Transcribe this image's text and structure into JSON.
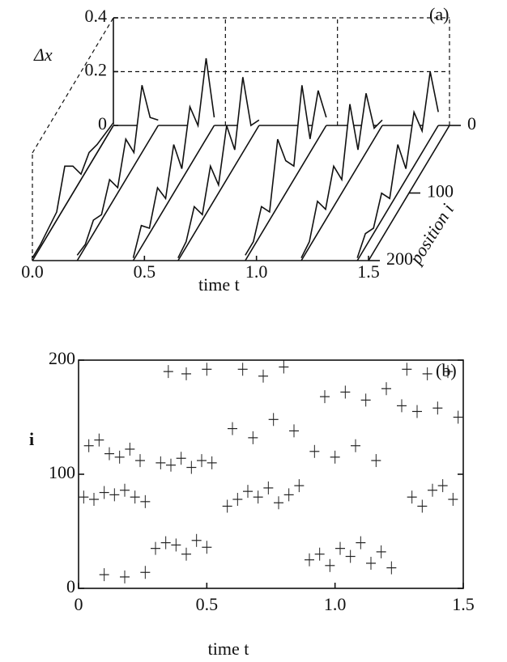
{
  "chart_data": [
    {
      "type": "waterfall",
      "label": "(a)",
      "ylabel": "Δx",
      "xlabel": "time t",
      "zlabel": "position i",
      "xlim": [
        0,
        1.5
      ],
      "xticks": [
        {
          "value": 0,
          "label": "0.0"
        },
        0.5,
        {
          "value": 1,
          "label": "1.0"
        },
        1.5
      ],
      "ylim": [
        0,
        0.4
      ],
      "yticks": [
        0,
        0.2,
        0.4
      ],
      "zlim": [
        0,
        200
      ],
      "zticks": [
        0,
        100,
        200
      ],
      "grid": true,
      "positions": [
        0,
        20,
        40,
        60,
        80,
        100,
        120,
        140,
        160,
        180,
        200
      ],
      "series": [
        {
          "t": 0.0,
          "values": [
            0.01,
            0.02,
            0.03,
            0.05,
            0.02,
            0.1,
            0.15,
            0.03,
            0.02,
            0.01,
            0.01
          ]
        },
        {
          "t": 0.2,
          "values": [
            0.02,
            0.08,
            0.25,
            0.05,
            0.15,
            0.02,
            0.1,
            0.02,
            0.05,
            0.01,
            0.02
          ]
        },
        {
          "t": 0.45,
          "values": [
            0.03,
            0.3,
            0.1,
            0.22,
            0.04,
            0.18,
            0.03,
            0.12,
            0.02,
            0.08,
            0.01
          ]
        },
        {
          "t": 0.65,
          "values": [
            0.02,
            0.05,
            0.28,
            0.06,
            0.2,
            0.03,
            0.15,
            0.02,
            0.1,
            0.02,
            0.01
          ]
        },
        {
          "t": 0.95,
          "values": [
            0.03,
            0.18,
            0.05,
            0.3,
            0.05,
            0.12,
            0.25,
            0.03,
            0.1,
            0.02,
            0.02
          ]
        },
        {
          "t": 1.2,
          "values": [
            0.02,
            0.04,
            0.22,
            0.06,
            0.28,
            0.05,
            0.15,
            0.04,
            0.12,
            0.02,
            0.01
          ]
        },
        {
          "t": 1.45,
          "values": [
            0.05,
            0.25,
            0.08,
            0.2,
            0.04,
            0.18,
            0.03,
            0.1,
            0.02,
            0.05,
            0.01
          ]
        }
      ]
    },
    {
      "type": "raster",
      "label": "(b)",
      "xlabel": "time t",
      "ylabel": "i",
      "xlim": [
        0,
        1.5
      ],
      "xticks": [
        0,
        0.5,
        {
          "value": 1,
          "label": "1.0"
        },
        1.5
      ],
      "ylim": [
        0,
        200
      ],
      "yticks": [
        0,
        100,
        200
      ],
      "x": [
        0.02,
        0.06,
        0.1,
        0.14,
        0.18,
        0.22,
        0.26,
        0.04,
        0.08,
        0.12,
        0.16,
        0.2,
        0.24,
        0.1,
        0.18,
        0.26,
        0.3,
        0.34,
        0.38,
        0.42,
        0.46,
        0.5,
        0.32,
        0.36,
        0.4,
        0.44,
        0.48,
        0.52,
        0.35,
        0.42,
        0.5,
        0.58,
        0.62,
        0.66,
        0.7,
        0.74,
        0.78,
        0.82,
        0.86,
        0.6,
        0.68,
        0.76,
        0.84,
        0.64,
        0.72,
        0.8,
        0.9,
        0.94,
        0.98,
        1.02,
        1.06,
        1.1,
        1.14,
        1.18,
        1.22,
        0.92,
        1.0,
        1.08,
        1.16,
        0.96,
        1.04,
        1.12,
        1.2,
        1.26,
        1.3,
        1.34,
        1.38,
        1.42,
        1.46,
        1.32,
        1.4,
        1.48,
        1.28,
        1.36,
        1.44
      ],
      "y": [
        80,
        78,
        84,
        82,
        86,
        80,
        76,
        125,
        130,
        118,
        115,
        122,
        112,
        12,
        10,
        14,
        35,
        40,
        38,
        30,
        42,
        36,
        110,
        108,
        114,
        106,
        112,
        110,
        190,
        188,
        192,
        72,
        78,
        85,
        80,
        88,
        75,
        82,
        90,
        140,
        132,
        148,
        138,
        192,
        186,
        194,
        25,
        30,
        20,
        35,
        28,
        40,
        22,
        32,
        18,
        120,
        115,
        125,
        112,
        168,
        172,
        165,
        175,
        160,
        80,
        72,
        86,
        90,
        78,
        155,
        158,
        150,
        192,
        188,
        190
      ]
    }
  ]
}
